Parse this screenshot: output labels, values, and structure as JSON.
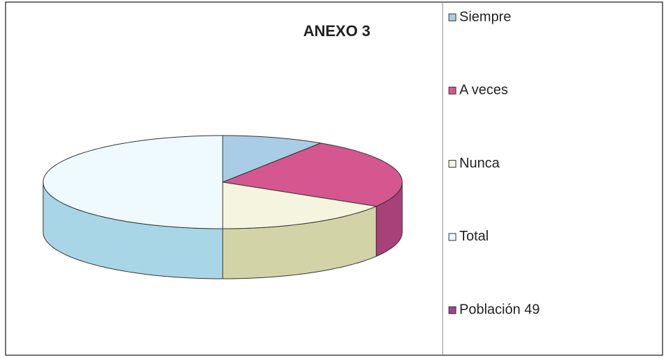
{
  "chart_data": {
    "type": "pie",
    "title": "ANEXO 3",
    "categories": [
      "Siempre",
      "A veces",
      "Nunca",
      "Total",
      "Población 49"
    ],
    "values": [
      9,
      24,
      16,
      49,
      0
    ],
    "colors": [
      "#a9cde6",
      "#d4578f",
      "#f5f5df",
      "#eefaff",
      "#a0448c"
    ],
    "side_colors": [
      "#8fb6d0",
      "#a8407a",
      "#d3d3a8",
      "#a9d6e6",
      "#7c3470"
    ],
    "legend": "right"
  }
}
